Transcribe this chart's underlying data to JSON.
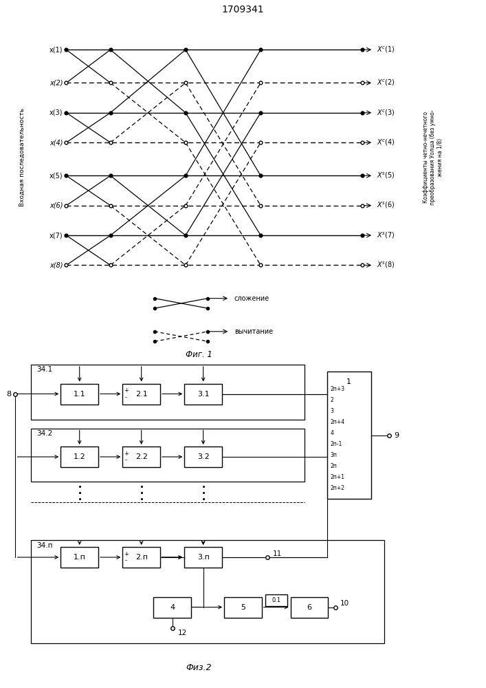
{
  "title": "1709341",
  "fig1_title": "Фиг. 1",
  "fig2_title": "Физ.2",
  "input_labels": [
    "x(1)",
    "x(2)",
    "x(3)",
    "x(4)",
    "x(5)",
    "x(6)",
    "x(7)",
    "x(8)"
  ],
  "out_sup": [
    "c",
    "c",
    "c",
    "c",
    "s",
    "s",
    "s",
    "s"
  ],
  "left_axis_label": "Входная последовательность",
  "right_axis_label": "Коэффициенты четно-нечетного\nпреобразования Уолша (без умно-\nжения на 1/8)",
  "legend_add": "сложение",
  "legend_sub": "вычитание",
  "labels_7": [
    "1",
    "2п+3",
    "2",
    "3",
    "2п+4",
    "4",
    "2п-1",
    "3п",
    "2п",
    "2п+1",
    "2п+2"
  ]
}
